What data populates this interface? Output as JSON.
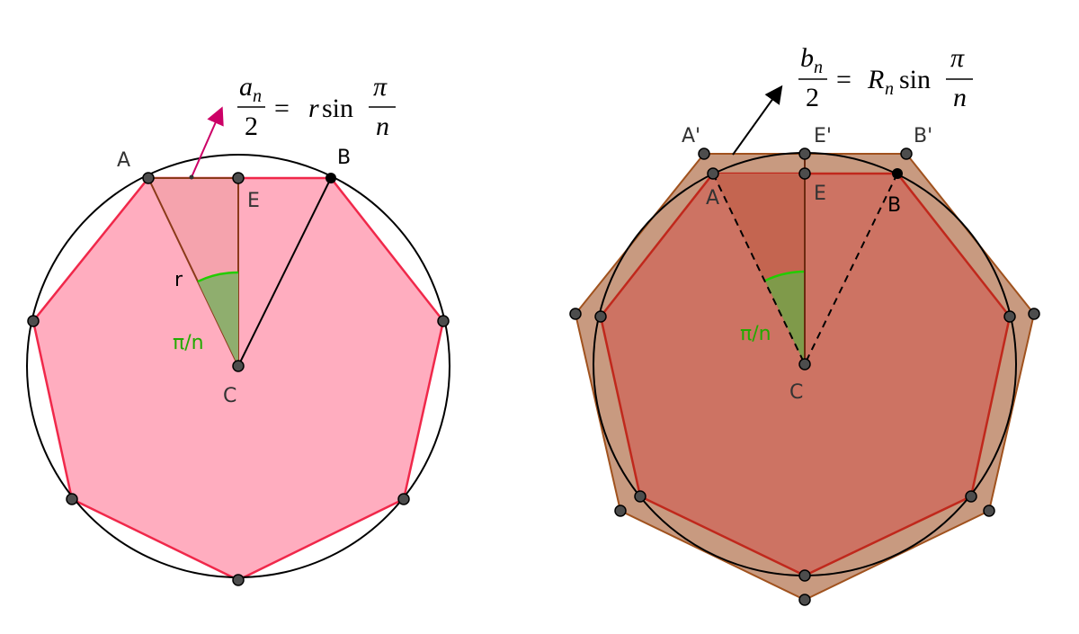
{
  "left": {
    "labels": {
      "A": "A",
      "B": "B",
      "E": "E",
      "C": "C",
      "r": "r",
      "angle": "π/n"
    },
    "formula": {
      "num": "a",
      "num_sub": "n",
      "den": "2",
      "eq": "=",
      "var": "r",
      "func": "sin",
      "frac_num": "π",
      "frac_den": "n"
    }
  },
  "right": {
    "labels": {
      "A_prime": "A'",
      "E_prime": "E'",
      "B_prime": "B'",
      "A": "A",
      "E": "E",
      "B": "B",
      "C": "C",
      "angle": "π/n"
    },
    "formula": {
      "num": "b",
      "num_sub": "n",
      "den": "2",
      "eq": "=",
      "var": "R",
      "var_sub": "n",
      "func": "sin",
      "frac_num": "π",
      "frac_den": "n"
    }
  }
}
